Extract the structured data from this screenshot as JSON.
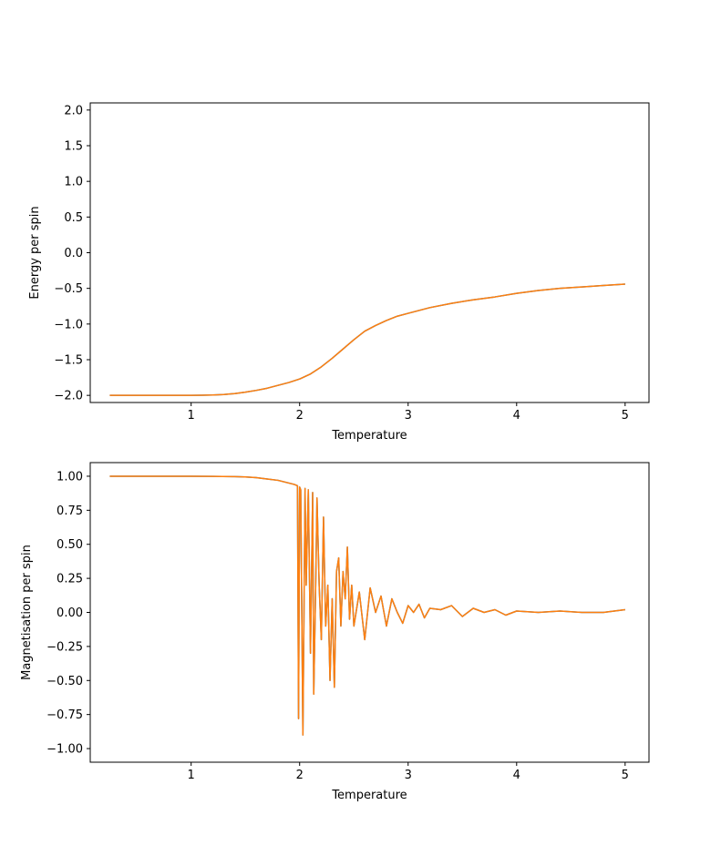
{
  "chart_data": [
    {
      "type": "line",
      "title": "",
      "xlabel": "Temperature",
      "ylabel": "Energy per spin",
      "xlim": [
        0.07,
        5.22
      ],
      "ylim": [
        -2.1,
        2.1
      ],
      "xticks": [
        1,
        2,
        3,
        4,
        5
      ],
      "yticks": [
        -2.0,
        -1.5,
        -1.0,
        -0.5,
        0.0,
        0.5,
        1.0,
        1.5,
        2.0
      ],
      "ytick_labels": [
        "−2.0",
        "−1.5",
        "−1.0",
        "−0.5",
        "0.0",
        "0.5",
        "1.0",
        "1.5",
        "2.0"
      ],
      "grid": false,
      "line_color": "#ff7f0e",
      "under_color": "#1f77b4",
      "x": [
        0.25,
        0.5,
        0.75,
        1.0,
        1.1,
        1.2,
        1.3,
        1.4,
        1.5,
        1.6,
        1.7,
        1.8,
        1.9,
        2.0,
        2.1,
        2.2,
        2.3,
        2.4,
        2.5,
        2.6,
        2.7,
        2.8,
        2.9,
        3.0,
        3.2,
        3.4,
        3.6,
        3.8,
        4.0,
        4.2,
        4.4,
        4.6,
        4.8,
        5.0
      ],
      "y": [
        -2.0,
        -2.0,
        -2.0,
        -2.0,
        -1.998,
        -1.995,
        -1.988,
        -1.975,
        -1.955,
        -1.93,
        -1.9,
        -1.86,
        -1.82,
        -1.77,
        -1.7,
        -1.6,
        -1.48,
        -1.35,
        -1.22,
        -1.1,
        -1.02,
        -0.95,
        -0.89,
        -0.85,
        -0.77,
        -0.71,
        -0.66,
        -0.62,
        -0.57,
        -0.53,
        -0.5,
        -0.48,
        -0.46,
        -0.44
      ]
    },
    {
      "type": "line",
      "title": "",
      "xlabel": "Temperature",
      "ylabel": "Magnetisation per spin",
      "xlim": [
        0.07,
        5.22
      ],
      "ylim": [
        -1.1,
        1.1
      ],
      "xticks": [
        1,
        2,
        3,
        4,
        5
      ],
      "yticks": [
        -1.0,
        -0.75,
        -0.5,
        -0.25,
        0.0,
        0.25,
        0.5,
        0.75,
        1.0
      ],
      "ytick_labels": [
        "−1.00",
        "−0.75",
        "−0.50",
        "−0.25",
        "0.00",
        "0.25",
        "0.50",
        "0.75",
        "1.00"
      ],
      "grid": false,
      "line_color": "#ff7f0e",
      "under_color": "#1f77b4",
      "x": [
        0.25,
        0.5,
        0.75,
        1.0,
        1.2,
        1.4,
        1.5,
        1.6,
        1.7,
        1.8,
        1.9,
        1.95,
        1.98,
        1.99,
        2.0,
        2.01,
        2.03,
        2.05,
        2.06,
        2.08,
        2.1,
        2.12,
        2.13,
        2.15,
        2.16,
        2.18,
        2.2,
        2.22,
        2.24,
        2.26,
        2.28,
        2.3,
        2.32,
        2.34,
        2.36,
        2.38,
        2.4,
        2.42,
        2.44,
        2.46,
        2.48,
        2.5,
        2.55,
        2.6,
        2.65,
        2.7,
        2.75,
        2.8,
        2.85,
        2.9,
        2.95,
        3.0,
        3.05,
        3.1,
        3.15,
        3.2,
        3.3,
        3.4,
        3.5,
        3.6,
        3.7,
        3.8,
        3.9,
        4.0,
        4.2,
        4.4,
        4.6,
        4.8,
        5.0
      ],
      "y": [
        1.0,
        1.0,
        1.0,
        1.0,
        0.999,
        0.997,
        0.995,
        0.99,
        0.98,
        0.97,
        0.95,
        0.94,
        0.93,
        -0.78,
        0.92,
        0.9,
        -0.9,
        0.91,
        0.2,
        0.9,
        -0.3,
        0.88,
        -0.6,
        0.3,
        0.84,
        0.2,
        -0.2,
        0.7,
        -0.1,
        0.2,
        -0.5,
        0.1,
        -0.55,
        0.3,
        0.4,
        -0.1,
        0.3,
        0.1,
        0.48,
        -0.05,
        0.2,
        -0.1,
        0.15,
        -0.2,
        0.18,
        0.0,
        0.12,
        -0.1,
        0.1,
        0.0,
        -0.08,
        0.05,
        0.0,
        0.06,
        -0.04,
        0.03,
        0.02,
        0.05,
        -0.03,
        0.03,
        0.0,
        0.02,
        -0.02,
        0.01,
        0.0,
        0.01,
        0.0,
        0.0,
        0.02
      ]
    }
  ]
}
